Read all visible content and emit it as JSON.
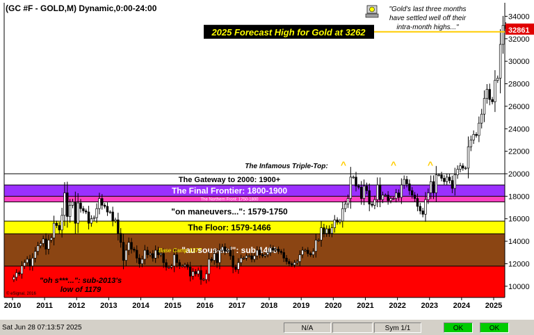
{
  "chart_data": {
    "type": "candlestick",
    "title": "(GC #F - GOLD,M) Dynamic,0:00-24:00",
    "y_axis": {
      "ylim": [
        9000,
        35200
      ],
      "ticks": [
        10000,
        12000,
        14000,
        16000,
        18000,
        20000,
        22000,
        24000,
        26000,
        28000,
        30000,
        32000,
        34000
      ]
    },
    "x_axis": {
      "tick_labels": [
        "2010",
        "2011",
        "2012",
        "2013",
        "2014",
        "2015",
        "2016",
        "2017",
        "2018",
        "2019",
        "2020",
        "2021",
        "2022",
        "2023",
        "2024",
        "2025"
      ]
    },
    "last_price_label": "32861",
    "monthly_closes": [
      {
        "year": 2010,
        "closes": [
          10800,
          11200,
          11100,
          11800,
          12100,
          12400,
          11800,
          12500,
          13100,
          13600,
          13800,
          14200
        ]
      },
      {
        "year": 2011,
        "closes": [
          13300,
          14100,
          14300,
          15600,
          15400,
          15000,
          16300,
          18300,
          16200,
          17200,
          17500,
          15600
        ]
      },
      {
        "year": 2012,
        "closes": [
          17400,
          16900,
          16700,
          16600,
          15600,
          16000,
          16100,
          16900,
          17800,
          17200,
          17100,
          16600
        ]
      },
      {
        "year": 2013,
        "closes": [
          16600,
          15800,
          15900,
          14700,
          13900,
          12300,
          13200,
          13900,
          13300,
          13200,
          12500,
          12000
        ]
      },
      {
        "year": 2014,
        "closes": [
          12400,
          13200,
          12800,
          12900,
          12500,
          13200,
          12800,
          12900,
          12100,
          11700,
          11700,
          11800
        ]
      },
      {
        "year": 2015,
        "closes": [
          12800,
          12100,
          11800,
          11800,
          11900,
          11700,
          10900,
          11300,
          11100,
          11400,
          10600,
          10600
        ]
      },
      {
        "year": 2016,
        "closes": [
          11100,
          12400,
          12300,
          12900,
          12100,
          13200,
          13500,
          13100,
          13200,
          12700,
          11700,
          11500
        ]
      },
      {
        "year": 2017,
        "closes": [
          12100,
          12500,
          12500,
          12700,
          12700,
          12400,
          12700,
          13200,
          12800,
          12700,
          12800,
          13000
        ]
      },
      {
        "year": 2018,
        "closes": [
          13400,
          13200,
          13300,
          13100,
          13000,
          12500,
          12200,
          12000,
          11900,
          12100,
          12200,
          12800
        ]
      },
      {
        "year": 2019,
        "closes": [
          13200,
          13200,
          12900,
          12800,
          13100,
          14100,
          14100,
          15200,
          14700,
          15100,
          14700,
          15200
        ]
      },
      {
        "year": 2020,
        "closes": [
          15900,
          15700,
          15800,
          16900,
          17300,
          17800,
          19700,
          19700,
          18900,
          18800,
          17800,
          18900
        ]
      },
      {
        "year": 2021,
        "closes": [
          18500,
          17300,
          17200,
          17700,
          19000,
          17700,
          18100,
          18100,
          17600,
          17800,
          17800,
          18300
        ]
      },
      {
        "year": 2022,
        "closes": [
          17900,
          19000,
          19500,
          19100,
          18500,
          18100,
          17800,
          17100,
          16700,
          16400,
          17700,
          18300
        ]
      },
      {
        "year": 2023,
        "closes": [
          19300,
          18300,
          19900,
          19900,
          19600,
          19300,
          19700,
          19400,
          18700,
          19900,
          20400,
          20700
        ]
      },
      {
        "year": 2024,
        "closes": [
          20500,
          20500,
          22400,
          23000,
          23500,
          23400,
          24500,
          25300,
          26700,
          27500,
          26600,
          26400
        ]
      },
      {
        "year": 2025,
        "closes": [
          28300,
          28500,
          31500,
          33200,
          32900,
          32861
        ]
      }
    ],
    "bands": [
      {
        "label": "The Gateway to 2000:  1900+",
        "from": 19000,
        "to": 20000,
        "color": "#ffffff",
        "text_color": "#000000"
      },
      {
        "label": "The Final Frontier:  1800-1900",
        "from": 18000,
        "to": 19000,
        "color": "#9b30ff",
        "text_color": "#ffffff"
      },
      {
        "label": "The Northern Front:  1750-1800",
        "from": 17500,
        "to": 18000,
        "color": "#ff40c0",
        "text_color": "#ffffff"
      },
      {
        "label": "\"on maneuvers...\":  1579-1750",
        "from": 15790,
        "to": 17500,
        "color": "#ffffff",
        "text_color": "#000000"
      },
      {
        "label": "The Floor:  1579-1466",
        "from": 14660,
        "to": 15790,
        "color": "#ffff00",
        "text_color": "#000000"
      },
      {
        "label": "\"au sous-sol\":  sub-1466",
        "from": 11790,
        "to": 14660,
        "color": "#8b4513",
        "text_color": "#ffffff"
      },
      {
        "label": "\"oh s***...\":  sub-2013's\nlow of 1179",
        "from": 9000,
        "to": 11790,
        "color": "#ff0000",
        "text_color": "#000000"
      }
    ],
    "annotations": {
      "forecast": "2025 Forecast High for Gold at 3262",
      "forecast_level": 32620,
      "quote": "\"Gold's last three months\nhave settled well off their\nintra-month highs...\"",
      "triple_top": "The Infamous Triple-Top:",
      "base_camp": "Base Camp 1377",
      "copyright": "© eSignal, 2016",
      "caret": "^"
    }
  },
  "status_bar": {
    "timestamp": "Sat Jun 28 07:13:57 2025",
    "na": "N/A",
    "sym": "Sym 1/1",
    "ok1": "OK",
    "ok2": "OK"
  }
}
